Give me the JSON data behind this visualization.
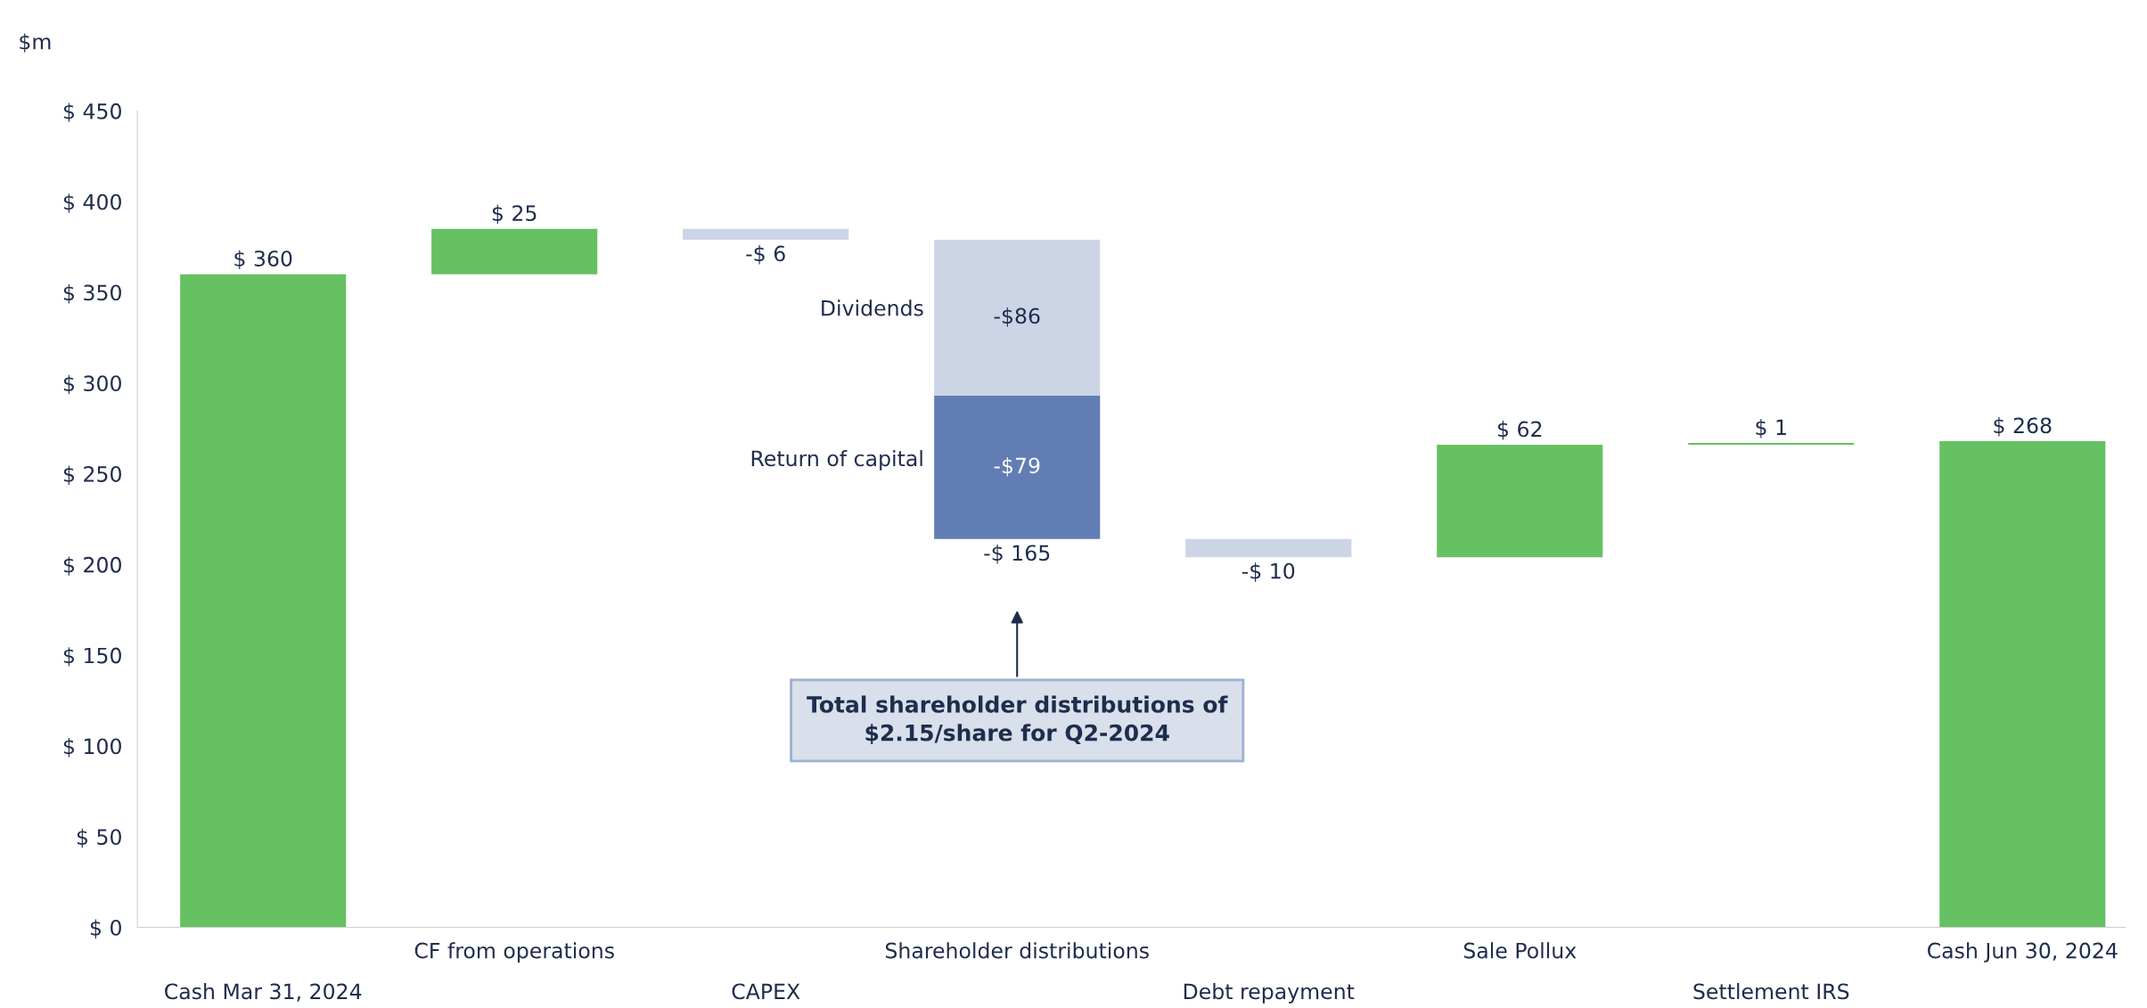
{
  "chart_data": {
    "type": "bar",
    "ylabel": "$m",
    "categories": [
      "Cash Mar 31, 2024",
      "CF from operations",
      "CAPEX",
      "Shareholder distributions",
      "Debt repayment",
      "Sale Pollux",
      "Settlement IRS",
      "Cash Jun 30, 2024"
    ],
    "series": [
      {
        "colors": [
          "#66c163",
          "#66c163",
          "#ccd5e6",
          null,
          "#ccd5e6",
          "#66c163",
          "#66c163",
          "#66c163"
        ],
        "values": [
          360,
          25,
          -6,
          null,
          -10,
          62,
          1,
          268
        ],
        "base": [
          0,
          360,
          385,
          null,
          214,
          204,
          266,
          0
        ],
        "value_labels": [
          "$ 360",
          "$ 25",
          "-$ 6",
          null,
          "-$ 10",
          "$ 62",
          "$ 1",
          "$ 268"
        ]
      },
      {
        "name": "Dividends",
        "color": "#ccd5e6",
        "values": [
          null,
          null,
          null,
          -86,
          null,
          null,
          null,
          null
        ],
        "base": [
          null,
          null,
          null,
          379,
          null,
          null,
          null,
          null
        ],
        "value_labels": [
          null,
          null,
          null,
          "-$86",
          null,
          null,
          null,
          null
        ]
      },
      {
        "name": "Return of capital",
        "color": "#627db3",
        "values": [
          null,
          null,
          null,
          -79,
          null,
          null,
          null,
          null
        ],
        "base": [
          null,
          null,
          null,
          293,
          null,
          null,
          null,
          null
        ],
        "value_labels": [
          null,
          null,
          null,
          "-$79",
          null,
          null,
          null,
          null
        ]
      }
    ],
    "totals": [
      null,
      null,
      null,
      "-$ 165",
      null,
      null,
      null,
      null
    ],
    "annotations": [
      "Total shareholder distributions of\n$2.15/share for Q2-2024"
    ],
    "ylim": [
      0,
      450
    ],
    "yticks": [
      {
        "value": 0,
        "label": "$ 0"
      },
      {
        "value": 50,
        "label": "$ 50"
      },
      {
        "value": 100,
        "label": "$ 100"
      },
      {
        "value": 150,
        "label": "$ 150"
      },
      {
        "value": 200,
        "label": "$ 200"
      },
      {
        "value": 250,
        "label": "$ 250"
      },
      {
        "value": 300,
        "label": "$ 300"
      },
      {
        "value": 350,
        "label": "$ 350"
      },
      {
        "value": 400,
        "label": "$ 400"
      },
      {
        "value": 450,
        "label": "$ 450"
      }
    ],
    "grid": false,
    "legend": false
  }
}
